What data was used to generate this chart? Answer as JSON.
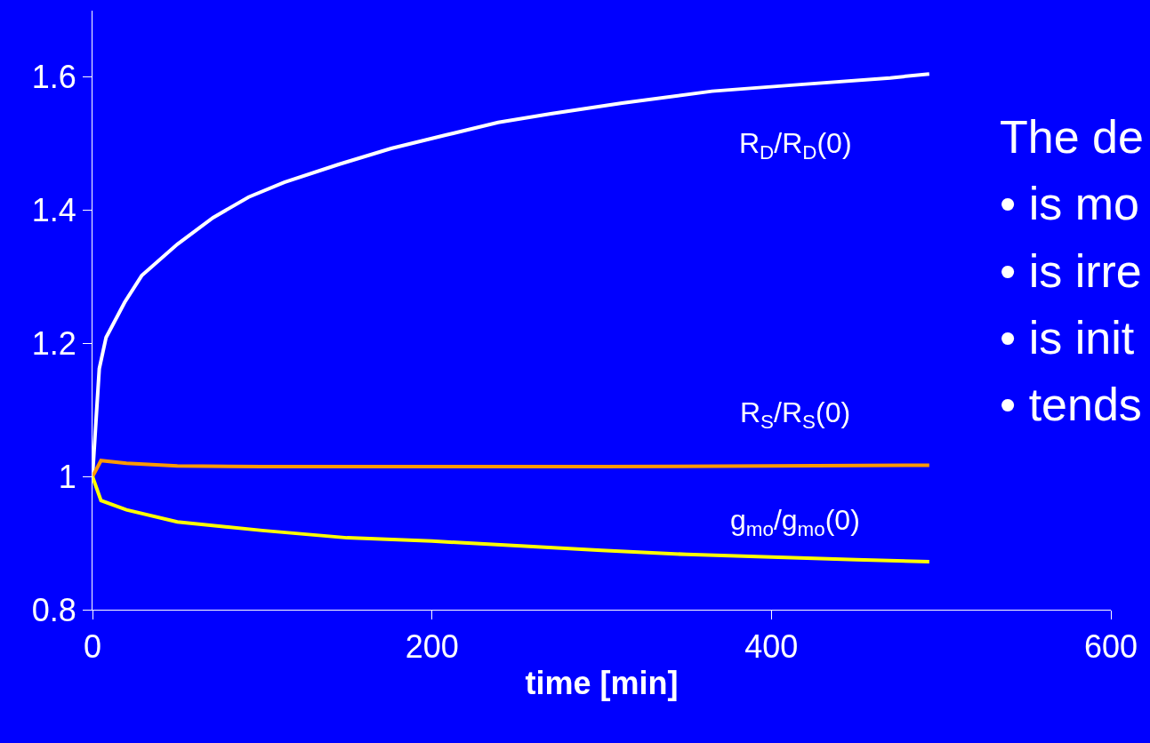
{
  "chart_data": {
    "type": "line",
    "xlabel": "time [min]",
    "xlim": [
      0,
      600
    ],
    "xticks": [
      0,
      200,
      400,
      600
    ],
    "ylim": [
      0.8,
      1.7
    ],
    "yticks": [
      0.8,
      1,
      1.2,
      1.4,
      1.6
    ],
    "grid": false,
    "legend": false,
    "marker": "none",
    "line_style": "solid",
    "series": [
      {
        "name": "R$_{D}$/R$_{D}$(0)",
        "color": "#ffffff",
        "x": [
          0,
          4,
          8,
          19,
          29,
          50,
          71,
          92,
          113,
          145,
          176,
          208,
          239,
          270,
          312,
          365,
          417,
          470,
          493
        ],
        "values": [
          1.0,
          1.162,
          1.209,
          1.262,
          1.302,
          1.349,
          1.389,
          1.42,
          1.442,
          1.469,
          1.493,
          1.513,
          1.532,
          1.545,
          1.561,
          1.579,
          1.589,
          1.599,
          1.605
        ]
      },
      {
        "name": "R$_{S}$/R$_{S}$(0)",
        "color": "#ff9900",
        "x": [
          0,
          5,
          20,
          50,
          100,
          200,
          300,
          400,
          493
        ],
        "values": [
          1.0,
          1.024,
          1.02,
          1.016,
          1.015,
          1.015,
          1.015,
          1.016,
          1.017
        ]
      },
      {
        "name": "g$_{mo}$/g$_{mo}$(0)",
        "color": "#ffff00",
        "x": [
          0,
          5,
          20,
          50,
          100,
          150,
          200,
          250,
          300,
          350,
          400,
          450,
          493
        ],
        "values": [
          1.0,
          0.964,
          0.95,
          0.932,
          0.919,
          0.908,
          0.903,
          0.896,
          0.889,
          0.883,
          0.879,
          0.875,
          0.872
        ]
      }
    ],
    "annotations": [
      "The de",
      "• is mo",
      "• is irre",
      "• is init",
      "• tends"
    ]
  }
}
